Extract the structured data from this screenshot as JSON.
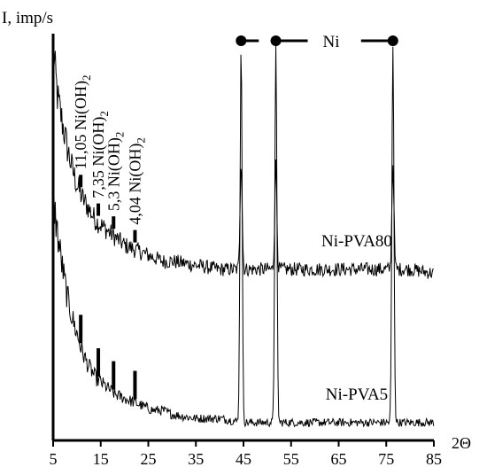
{
  "chart_data": {
    "type": "line",
    "title": "",
    "ylabel": "I, imp/s",
    "xlabel": "2Θ",
    "xlim": [
      5,
      85
    ],
    "ylim": [
      0,
      100
    ],
    "y_ticks_shown": false,
    "x_ticks": [
      5,
      15,
      25,
      35,
      45,
      55,
      65,
      75,
      85
    ],
    "x_tick_labels": [
      "5",
      "15",
      "25",
      "35",
      "45",
      "55",
      "65",
      "75",
      "85"
    ],
    "grid": false,
    "legend": "none",
    "series": [
      {
        "name": "Ni-PVA80",
        "offset": 29,
        "background": [
          [
            5,
            67
          ],
          [
            6,
            55
          ],
          [
            7,
            49
          ],
          [
            8,
            43
          ],
          [
            9,
            38
          ],
          [
            10,
            34
          ],
          [
            11,
            31
          ],
          [
            12,
            29
          ],
          [
            13,
            27
          ],
          [
            14,
            25
          ],
          [
            16,
            23
          ],
          [
            18,
            21
          ],
          [
            20,
            19
          ],
          [
            22,
            18
          ],
          [
            24,
            17
          ],
          [
            26,
            16
          ],
          [
            28,
            15
          ],
          [
            30,
            15
          ],
          [
            35,
            14
          ],
          [
            40,
            13
          ],
          [
            45,
            13
          ],
          [
            50,
            13
          ],
          [
            55,
            13
          ],
          [
            60,
            13
          ],
          [
            65,
            13
          ],
          [
            70,
            13
          ],
          [
            75,
            13
          ],
          [
            80,
            13
          ],
          [
            85,
            12
          ]
        ],
        "peaks": [
          [
            44.5,
            69
          ],
          [
            51.8,
            68
          ],
          [
            76.4,
            68
          ]
        ]
      },
      {
        "name": "Ni-PVA5",
        "offset": 0,
        "background": [
          [
            5,
            60
          ],
          [
            6,
            50
          ],
          [
            7,
            42
          ],
          [
            8,
            35
          ],
          [
            9,
            30
          ],
          [
            10,
            26
          ],
          [
            11,
            22
          ],
          [
            12,
            19
          ],
          [
            13,
            17
          ],
          [
            14,
            15
          ],
          [
            16,
            13
          ],
          [
            18,
            11
          ],
          [
            20,
            10
          ],
          [
            22,
            9
          ],
          [
            24,
            8
          ],
          [
            26,
            7
          ],
          [
            28,
            7
          ],
          [
            30,
            6
          ],
          [
            35,
            5
          ],
          [
            40,
            5
          ],
          [
            45,
            4
          ],
          [
            50,
            4
          ],
          [
            55,
            4
          ],
          [
            60,
            4
          ],
          [
            65,
            4
          ],
          [
            70,
            4
          ],
          [
            75,
            4
          ],
          [
            80,
            4
          ],
          [
            85,
            4
          ]
        ],
        "peaks": [
          [
            44.5,
            98
          ],
          [
            51.8,
            97
          ],
          [
            76.4,
            97
          ]
        ]
      }
    ],
    "reflections": [
      {
        "x": 10.8,
        "label": "11,05 Ni(OH)",
        "subscript": "2"
      },
      {
        "x": 14.5,
        "label": "7,35 Ni(OH)",
        "subscript": "2"
      },
      {
        "x": 17.7,
        "label": "5,3 Ni(OH)",
        "subscript": "2"
      },
      {
        "x": 22.2,
        "label": "4,04 Ni(OH)",
        "subscript": "2"
      }
    ],
    "ni_peaks_label": "Ni",
    "ni_peak_x": [
      44.5,
      51.8,
      76.4
    ]
  }
}
